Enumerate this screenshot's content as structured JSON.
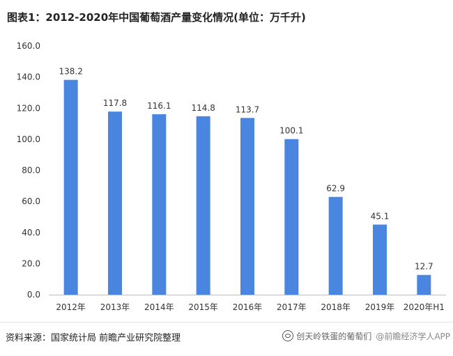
{
  "title": "图表1：2012-2020年中国葡萄酒产量变化情况(单位：万千升)",
  "source": "资料来源：国家统计局 前瞻产业研究院整理",
  "watermark": {
    "account": "创天岭铁蛋的葡萄们",
    "brand": "@前瞻经济学人APP"
  },
  "colors": {
    "bar": "#4a86e0",
    "axis": "#bfbfbf",
    "text": "#333333"
  },
  "chart_data": {
    "type": "bar",
    "categories": [
      "2012年",
      "2013年",
      "2014年",
      "2015年",
      "2016年",
      "2017年",
      "2018年",
      "2019年",
      "2020年H1"
    ],
    "values": [
      138.2,
      117.8,
      116.1,
      114.8,
      113.7,
      100.1,
      62.9,
      45.1,
      12.7
    ],
    "value_labels": [
      "138.2",
      "117.8",
      "116.1",
      "114.8",
      "113.7",
      "100.1",
      "62.9",
      "45.1",
      "12.7"
    ],
    "yticks": [
      "0.0",
      "20.0",
      "40.0",
      "60.0",
      "80.0",
      "100.0",
      "120.0",
      "140.0",
      "160.0"
    ],
    "ylim": [
      0,
      160
    ],
    "grid": false,
    "legend": "none"
  }
}
